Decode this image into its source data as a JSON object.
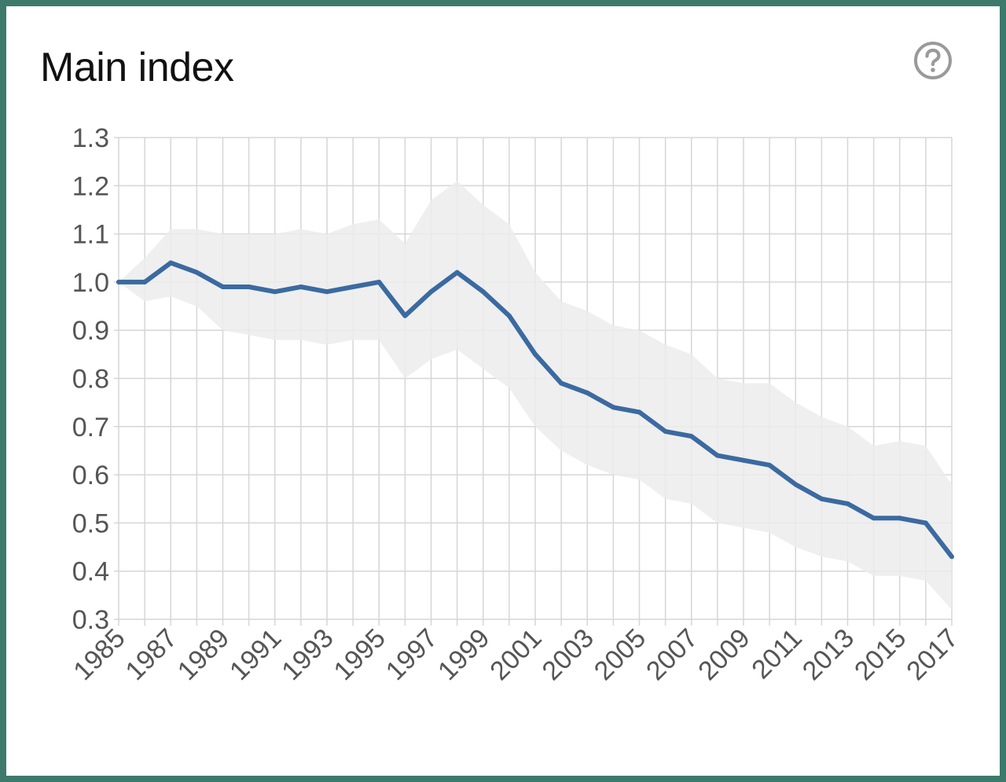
{
  "header": {
    "title": "Main index",
    "help_icon": "question-circle-icon"
  },
  "colors": {
    "line": "#3b6aa1",
    "band": "#ececec",
    "grid": "#d6d6d6",
    "frame": "#3d7a6c"
  },
  "chart_data": {
    "type": "line",
    "title": "Main index",
    "xlabel": "",
    "ylabel": "",
    "xlim": [
      1985,
      2017
    ],
    "ylim": [
      0.3,
      1.3
    ],
    "grid": true,
    "x_ticks": [
      "1985",
      "1987",
      "1989",
      "1991",
      "1993",
      "1995",
      "1997",
      "1999",
      "2001",
      "2003",
      "2005",
      "2007",
      "2009",
      "2011",
      "2013",
      "2015",
      "2017"
    ],
    "y_ticks": [
      "1.3",
      "1.2",
      "1.1",
      "1.0",
      "0.9",
      "0.8",
      "0.7",
      "0.6",
      "0.5",
      "0.4",
      "0.3"
    ],
    "x": [
      1985,
      1986,
      1987,
      1988,
      1989,
      1990,
      1991,
      1992,
      1993,
      1994,
      1995,
      1996,
      1997,
      1998,
      1999,
      2000,
      2001,
      2002,
      2003,
      2004,
      2005,
      2006,
      2007,
      2008,
      2009,
      2010,
      2011,
      2012,
      2013,
      2014,
      2015,
      2016,
      2017
    ],
    "series": [
      {
        "values": [
          1.0,
          1.0,
          1.04,
          1.02,
          0.99,
          0.99,
          0.98,
          0.99,
          0.98,
          0.99,
          1.0,
          0.93,
          0.98,
          1.02,
          0.98,
          0.93,
          0.85,
          0.79,
          0.77,
          0.74,
          0.73,
          0.69,
          0.68,
          0.64,
          0.63,
          0.62,
          0.58,
          0.55,
          0.54,
          0.51,
          0.51,
          0.5,
          0.43
        ],
        "upper": [
          1.0,
          1.05,
          1.11,
          1.11,
          1.1,
          1.1,
          1.1,
          1.11,
          1.1,
          1.12,
          1.13,
          1.08,
          1.17,
          1.21,
          1.16,
          1.12,
          1.02,
          0.96,
          0.94,
          0.91,
          0.9,
          0.87,
          0.85,
          0.8,
          0.79,
          0.79,
          0.75,
          0.72,
          0.7,
          0.66,
          0.67,
          0.66,
          0.58
        ],
        "lower": [
          1.0,
          0.96,
          0.97,
          0.95,
          0.9,
          0.89,
          0.88,
          0.88,
          0.87,
          0.88,
          0.88,
          0.8,
          0.84,
          0.86,
          0.82,
          0.78,
          0.7,
          0.65,
          0.62,
          0.6,
          0.59,
          0.55,
          0.54,
          0.5,
          0.49,
          0.48,
          0.45,
          0.43,
          0.42,
          0.39,
          0.39,
          0.38,
          0.32
        ]
      }
    ]
  }
}
